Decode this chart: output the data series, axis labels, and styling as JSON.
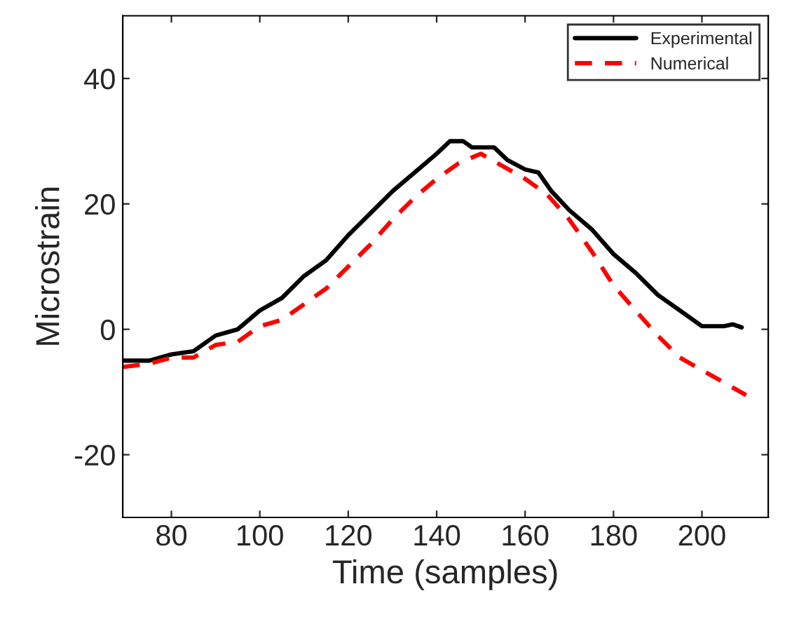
{
  "chart_data": {
    "type": "line",
    "xlabel": "Time (samples)",
    "ylabel": "Microstrain",
    "xlim": [
      69,
      215
    ],
    "ylim": [
      -30,
      50
    ],
    "xticks": [
      80,
      100,
      120,
      140,
      160,
      180,
      200
    ],
    "yticks": [
      -20,
      0,
      20,
      40
    ],
    "grid": false,
    "legend": "top right",
    "series": [
      {
        "name": "Experimental",
        "color": "#000000",
        "line_style": "solid",
        "x": [
          69,
          75,
          80,
          85,
          90,
          95,
          100,
          105,
          110,
          115,
          120,
          125,
          130,
          135,
          140,
          143,
          146,
          148,
          153,
          156,
          160,
          163,
          166,
          170,
          175,
          180,
          185,
          190,
          195,
          200,
          205,
          207,
          209
        ],
        "values": [
          -5,
          -5,
          -4,
          -3.5,
          -1,
          0,
          3,
          5,
          8.5,
          11,
          15,
          18.5,
          22,
          25,
          28,
          30,
          30,
          29,
          29,
          27,
          25.5,
          25,
          22,
          19,
          16,
          12,
          9,
          5.5,
          3,
          0.5,
          0.5,
          0.8,
          0.3
        ]
      },
      {
        "name": "Numerical",
        "color": "#ff0000",
        "line_style": "dashed",
        "x": [
          69,
          75,
          80,
          85,
          90,
          95,
          100,
          105,
          110,
          115,
          120,
          125,
          130,
          135,
          140,
          145,
          150,
          155,
          160,
          165,
          170,
          175,
          180,
          185,
          190,
          195,
          200,
          205,
          210
        ],
        "values": [
          -6,
          -5.5,
          -4.5,
          -4.5,
          -2.5,
          -2,
          0.5,
          1.5,
          4,
          6.5,
          10,
          13.5,
          17.5,
          21,
          24,
          26.5,
          28,
          26,
          24,
          21.5,
          17.5,
          12.5,
          7,
          3,
          -1,
          -4.5,
          -6.5,
          -8.5,
          -10.5
        ]
      }
    ]
  }
}
